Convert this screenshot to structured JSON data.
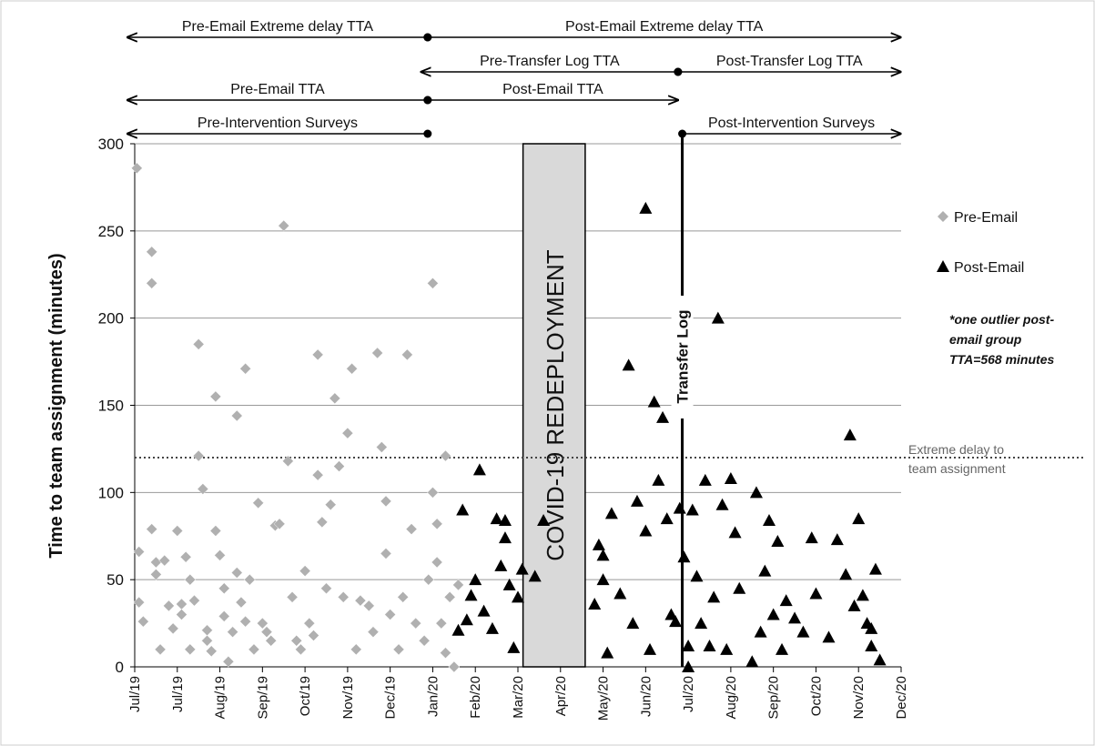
{
  "chart_data": {
    "type": "scatter",
    "ylabel": "Time to team assignment (minutes)",
    "xlim": [
      0,
      18
    ],
    "xticks": [
      {
        "value": 0,
        "label": "Jul/19"
      },
      {
        "value": 1,
        "label": "Jul/19"
      },
      {
        "value": 2,
        "label": "Aug/19"
      },
      {
        "value": 3,
        "label": "Sep/19"
      },
      {
        "value": 4,
        "label": "Oct/19"
      },
      {
        "value": 5,
        "label": "Nov/19"
      },
      {
        "value": 6,
        "label": "Dec/19"
      },
      {
        "value": 7,
        "label": "Jan/20"
      },
      {
        "value": 8,
        "label": "Feb/20"
      },
      {
        "value": 9,
        "label": "Mar/20"
      },
      {
        "value": 10,
        "label": "Apr/20"
      },
      {
        "value": 11,
        "label": "May/20"
      },
      {
        "value": 12,
        "label": "Jun/20"
      },
      {
        "value": 13,
        "label": "Jul/20"
      },
      {
        "value": 14,
        "label": "Aug/20"
      },
      {
        "value": 15,
        "label": "Sep/20"
      },
      {
        "value": 16,
        "label": "Oct/20"
      },
      {
        "value": 17,
        "label": "Nov/20"
      },
      {
        "value": 18,
        "label": "Dec/20"
      }
    ],
    "ylim": [
      0,
      300
    ],
    "yticks": [
      0,
      50,
      100,
      150,
      200,
      250,
      300
    ],
    "grid": true,
    "series": [
      {
        "name": "Pre-Email",
        "color": "#b0b0b0",
        "marker": "diamond",
        "x": [
          0.05,
          0.4,
          0.4,
          0.1,
          0.1,
          0.2,
          0.4,
          0.5,
          0.5,
          0.7,
          0.6,
          0.8,
          1.0,
          0.9,
          1.1,
          1.1,
          1.2,
          1.3,
          1.3,
          1.4,
          1.5,
          1.5,
          1.6,
          1.7,
          1.7,
          1.8,
          1.9,
          1.9,
          2.0,
          2.1,
          2.1,
          2.2,
          2.3,
          2.4,
          2.4,
          2.5,
          2.6,
          2.6,
          2.7,
          2.8,
          2.9,
          3.0,
          3.1,
          3.2,
          3.3,
          3.4,
          3.5,
          3.6,
          3.7,
          3.8,
          3.9,
          4.0,
          4.1,
          4.2,
          4.3,
          4.3,
          4.4,
          4.5,
          4.6,
          4.7,
          4.8,
          4.9,
          5.0,
          5.1,
          5.2,
          5.3,
          5.5,
          5.6,
          5.7,
          5.8,
          5.9,
          5.9,
          6.0,
          6.2,
          6.3,
          6.4,
          6.5,
          6.6,
          6.8,
          6.9,
          7.0,
          7.0,
          7.1,
          7.1,
          7.2,
          7.3,
          7.3,
          7.4,
          7.5,
          7.6
        ],
        "values": [
          286,
          238,
          220,
          66,
          37,
          26,
          79,
          60,
          53,
          61,
          10,
          35,
          78,
          22,
          30,
          36,
          63,
          50,
          10,
          38,
          185,
          121,
          102,
          21,
          15,
          9,
          155,
          78,
          64,
          45,
          29,
          3,
          20,
          144,
          54,
          37,
          171,
          26,
          50,
          10,
          94,
          25,
          20,
          15,
          81,
          82,
          253,
          118,
          40,
          15,
          10,
          55,
          25,
          18,
          179,
          110,
          83,
          45,
          93,
          154,
          115,
          40,
          134,
          171,
          10,
          38,
          35,
          20,
          180,
          126,
          95,
          65,
          30,
          10,
          40,
          179,
          79,
          25,
          15,
          50,
          220,
          100,
          82,
          60,
          25,
          121,
          8,
          40,
          0,
          47
        ]
      },
      {
        "name": "Post-Email",
        "color": "#000000",
        "marker": "triangle",
        "x": [
          7.6,
          7.7,
          7.8,
          7.9,
          8.0,
          8.1,
          8.2,
          8.4,
          8.5,
          8.6,
          8.7,
          8.7,
          8.8,
          8.9,
          9.0,
          9.1,
          9.4,
          9.6,
          10.8,
          10.9,
          11.0,
          11.0,
          11.1,
          11.2,
          11.4,
          11.6,
          11.7,
          11.8,
          12.0,
          12.0,
          12.1,
          12.2,
          12.3,
          12.4,
          12.5,
          12.6,
          12.7,
          12.8,
          12.9,
          13.0,
          13.0,
          13.1,
          13.2,
          13.3,
          13.4,
          13.5,
          13.6,
          13.7,
          13.8,
          13.9,
          14.0,
          14.1,
          14.2,
          14.5,
          14.6,
          14.7,
          14.8,
          14.9,
          15.0,
          15.1,
          15.2,
          15.3,
          15.5,
          15.7,
          15.9,
          16.0,
          16.3,
          16.5,
          16.7,
          16.8,
          16.9,
          17.0,
          17.1,
          17.2,
          17.3,
          17.4,
          17.5,
          17.3
        ],
        "values": [
          21,
          90,
          27,
          41,
          50,
          113,
          32,
          22,
          85,
          58,
          84,
          74,
          47,
          11,
          40,
          56,
          52,
          84,
          36,
          70,
          64,
          50,
          8,
          88,
          42,
          173,
          25,
          95,
          263,
          78,
          10,
          152,
          107,
          143,
          85,
          30,
          26,
          91,
          63,
          12,
          0,
          90,
          52,
          25,
          107,
          12,
          40,
          200,
          93,
          10,
          108,
          77,
          45,
          3,
          100,
          20,
          55,
          84,
          30,
          72,
          10,
          38,
          28,
          20,
          74,
          42,
          17,
          73,
          53,
          133,
          35,
          85,
          41,
          25,
          12,
          56,
          4,
          22
        ]
      }
    ],
    "threshold": {
      "value": 120,
      "label": [
        "Extreme delay to",
        "team assignment"
      ]
    },
    "note": [
      "*one outlier post-",
      "email group",
      "TTA=568 minutes"
    ],
    "shaded_region": {
      "label": "COVID-19 REDEPLOYMENT",
      "x": [
        9.12,
        10.58
      ]
    },
    "vertical_line": {
      "label": "Transfer Log",
      "x": 12.86
    },
    "periods": [
      {
        "text": "Pre-Email Extreme delay TTA",
        "x": [
          -0.17,
          6.88
        ],
        "dot": "end",
        "row": 0
      },
      {
        "text": "Post-Email Extreme delay TTA",
        "x": [
          6.88,
          17.99
        ],
        "dot": "start",
        "row": 0
      },
      {
        "text": "Pre-Transfer Log TTA",
        "x": [
          6.73,
          12.76
        ],
        "dot": "end",
        "row": 1
      },
      {
        "text": "Post-Transfer Log TTA",
        "x": [
          12.76,
          17.99
        ],
        "dot": "start",
        "row": 1
      },
      {
        "text": "Pre-Email TTA",
        "x": [
          -0.17,
          6.88
        ],
        "dot": "end",
        "row": 2
      },
      {
        "text": "Post-Email TTA",
        "x": [
          6.88,
          12.76
        ],
        "dot": "start",
        "row": 2
      },
      {
        "text": "Pre-Intervention Surveys",
        "x": [
          -0.17,
          6.88
        ],
        "dot": "end",
        "row": 3
      },
      {
        "text": "Post-Intervention Surveys",
        "x": [
          12.86,
          17.99
        ],
        "dot": "start",
        "row": 3
      }
    ]
  }
}
